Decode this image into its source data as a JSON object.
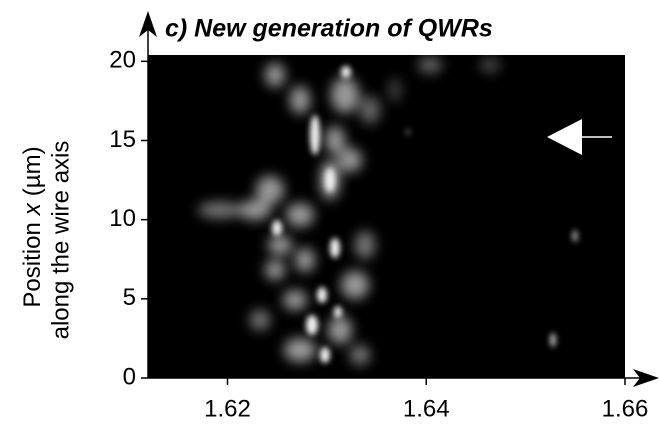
{
  "chart_data": {
    "type": "image",
    "title": "c) New generation of QWRs",
    "ylabel": [
      "Position",
      "x",
      "(µm)"
    ],
    "ylabel2": "along the wire axis",
    "xlim": [
      1.612,
      1.66
    ],
    "xticks": [
      1.62,
      1.64,
      1.66
    ],
    "ylim": [
      0,
      20.4
    ],
    "yticks": [
      0,
      5,
      10,
      15,
      20
    ]
  }
}
